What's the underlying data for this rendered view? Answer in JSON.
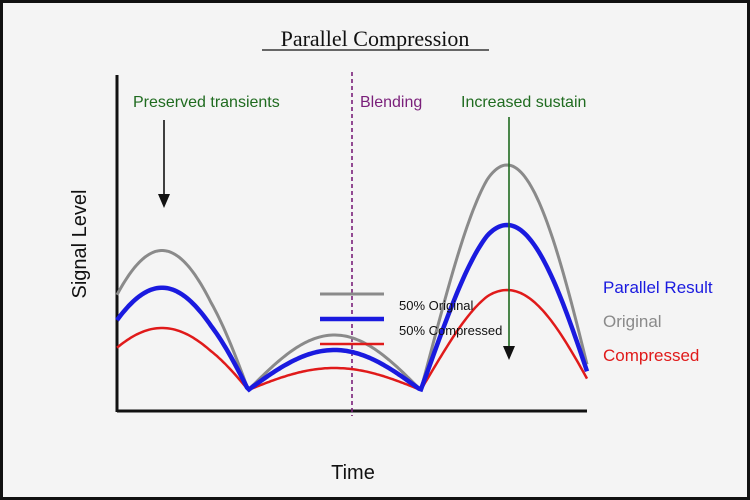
{
  "title": "Parallel Compression",
  "axes": {
    "x_label": "Time",
    "y_label": "Signal Level"
  },
  "annotations": {
    "preserved_transients": "Preserved transients",
    "blending": "Blending",
    "increased_sustain": "Increased sustain"
  },
  "legend": {
    "original": "50% Original",
    "compressed": "50% Compressed"
  },
  "curve_labels": {
    "parallel_result": "Parallel Result",
    "original": "Original",
    "compressed": "Compressed"
  },
  "colors": {
    "original": "#8a8a8a",
    "parallel_result": "#1a1adf",
    "compressed": "#e01a1a",
    "annotation_green": "#1f6b1f",
    "blending_purple": "#7a1f7a",
    "axis": "#111111",
    "background": "#f4f4f4"
  }
}
